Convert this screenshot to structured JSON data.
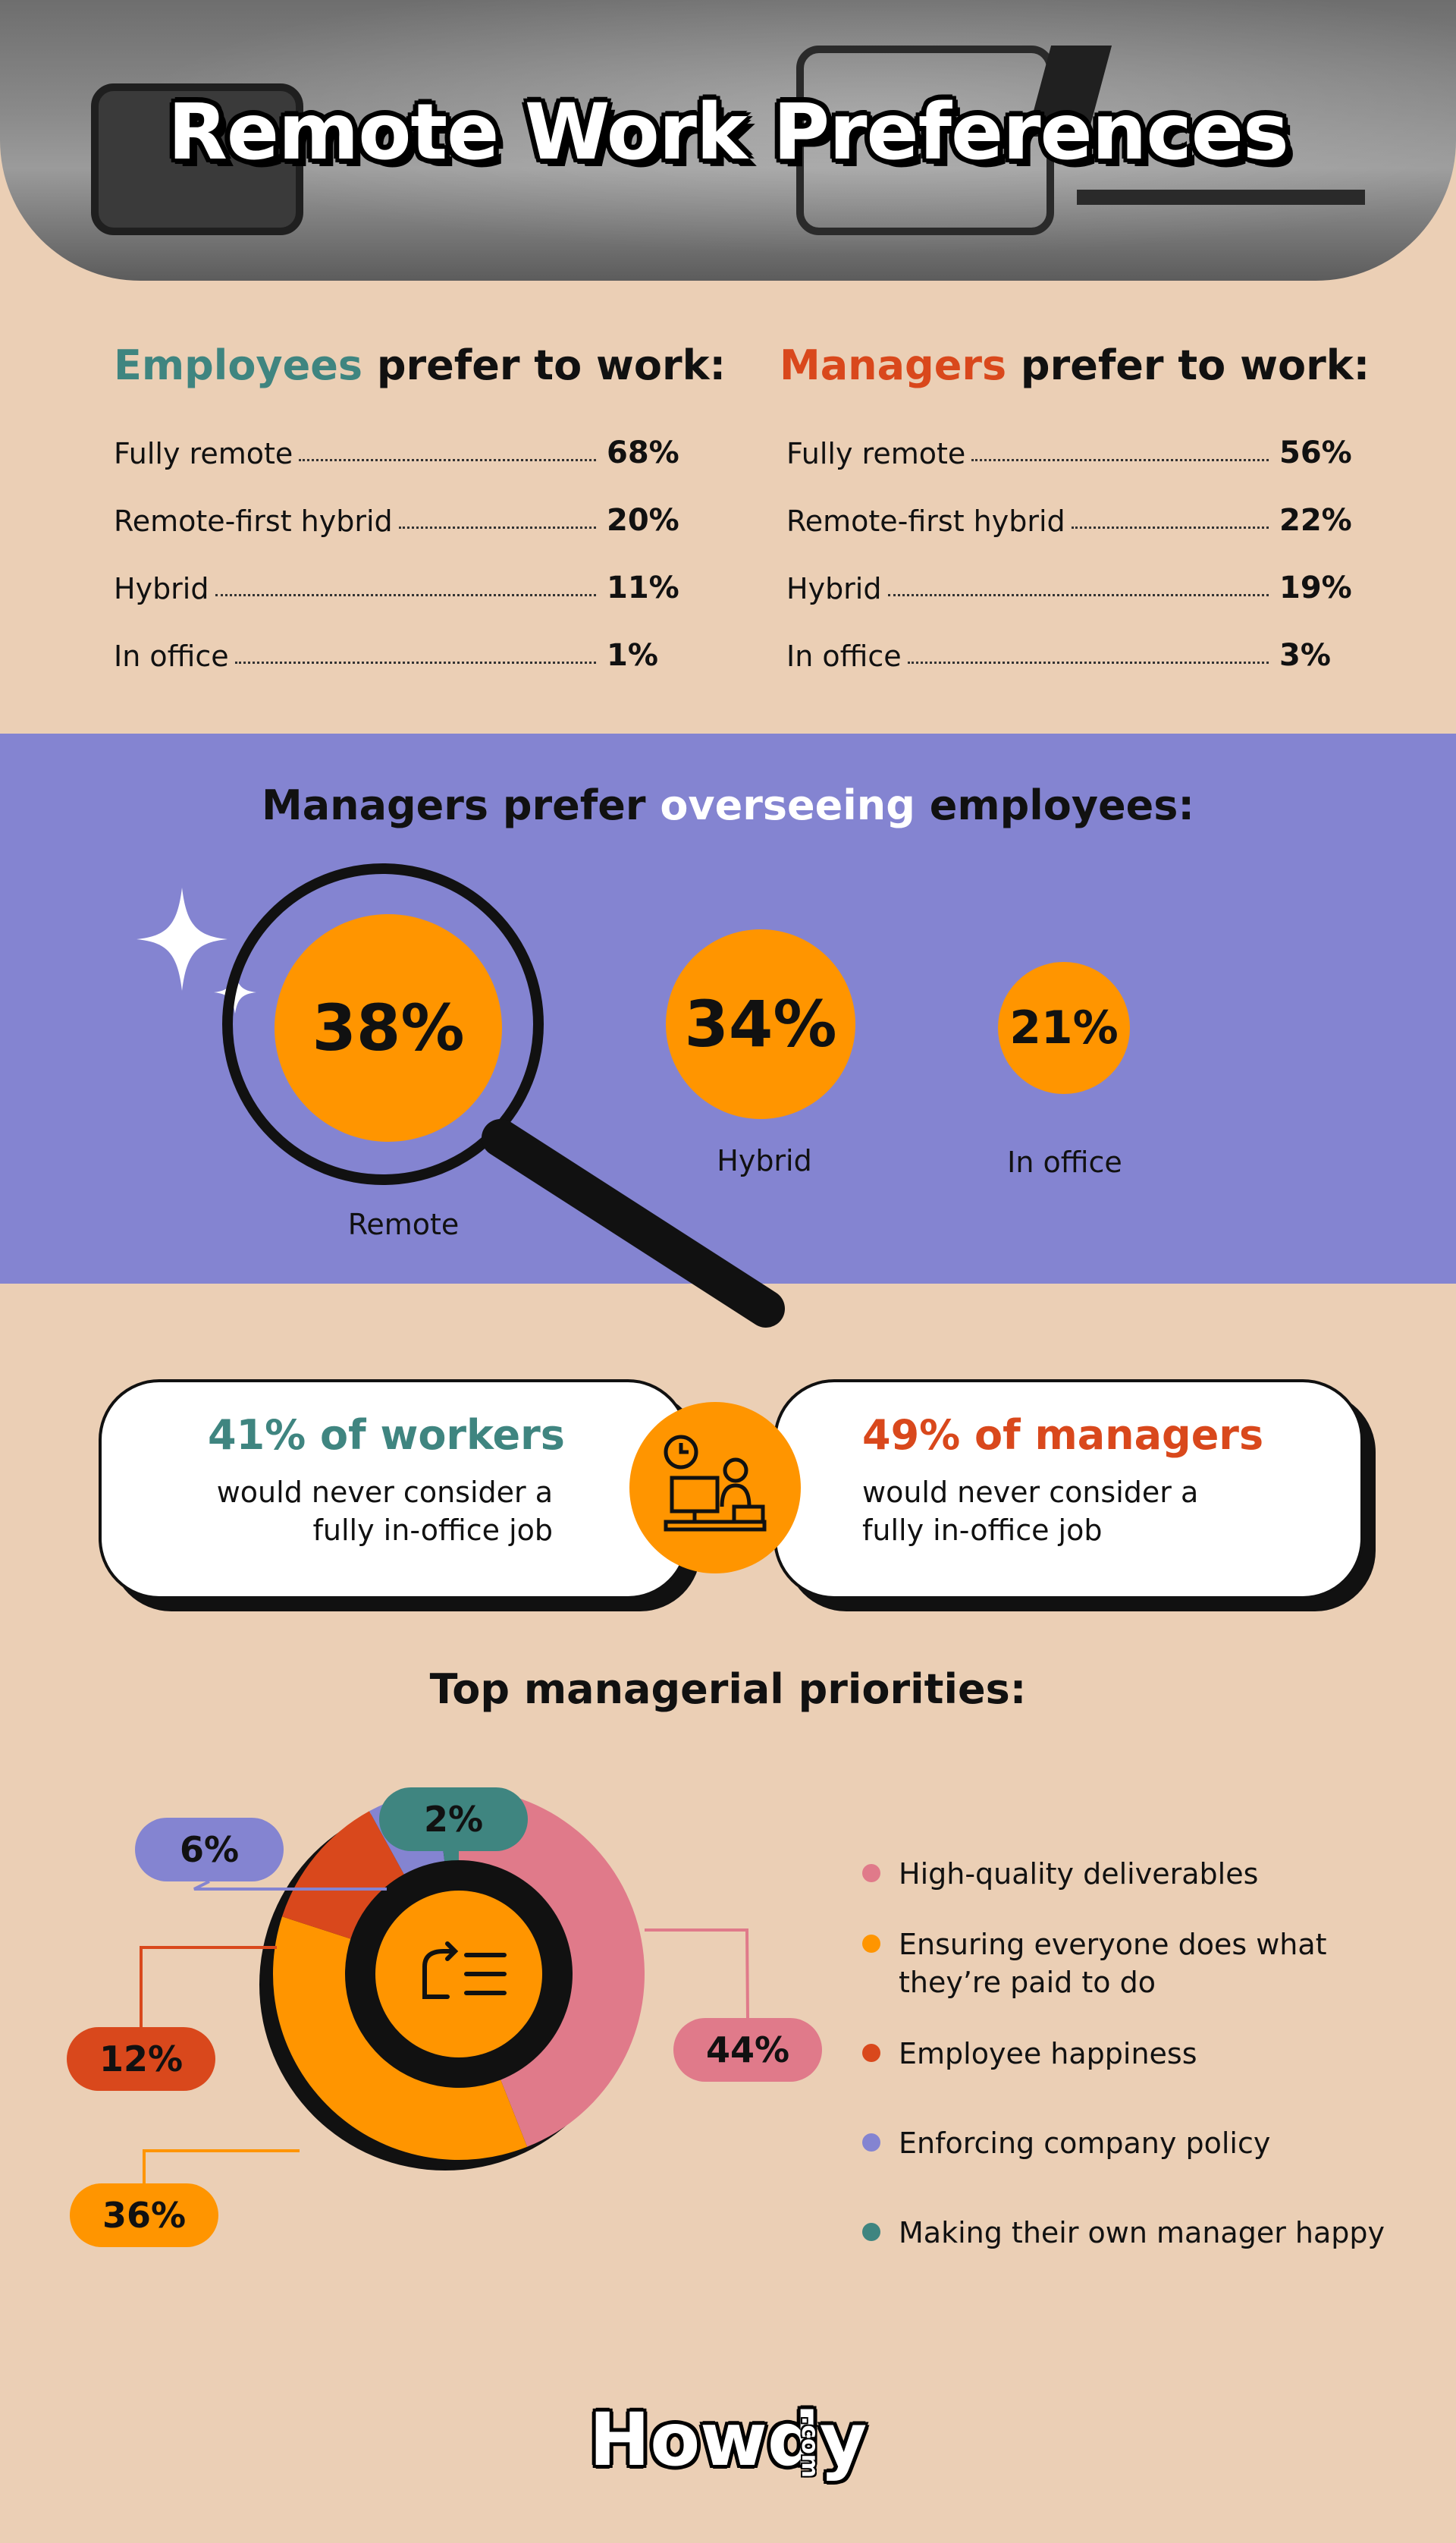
{
  "header": {
    "title": "Remote Work Preferences"
  },
  "preferences": {
    "employees": {
      "heading_highlight": "Employees",
      "heading_rest": " prefer to work:",
      "color": "#3F8580",
      "rows": [
        {
          "label": "Fully remote",
          "value": "68%"
        },
        {
          "label": "Remote-first hybrid",
          "value": "20%"
        },
        {
          "label": "Hybrid",
          "value": "11%"
        },
        {
          "label": "In office",
          "value": "1%"
        }
      ]
    },
    "managers": {
      "heading_highlight": "Managers",
      "heading_rest": " prefer to work:",
      "color": "#D9481C",
      "rows": [
        {
          "label": "Fully remote",
          "value": "56%"
        },
        {
          "label": "Remote-first hybrid",
          "value": "22%"
        },
        {
          "label": "Hybrid",
          "value": "19%"
        },
        {
          "label": "In office",
          "value": "3%"
        }
      ]
    }
  },
  "overseeing": {
    "title_start": "Managers prefer ",
    "title_highlight": "overseeing",
    "title_end": " employees:",
    "items": [
      {
        "label": "Remote",
        "value": "38%"
      },
      {
        "label": "Hybrid",
        "value": "34%"
      },
      {
        "label": "In office",
        "value": "21%"
      }
    ]
  },
  "never_office": {
    "workers": {
      "headline": "41% of workers",
      "line1": "would never consider a",
      "line2": "fully in-office job",
      "color": "#3F8580"
    },
    "managers": {
      "headline": "49% of managers",
      "line1": "would never consider a",
      "line2": "fully in-office job",
      "color": "#D9481C"
    }
  },
  "priorities": {
    "title": "Top managerial priorities:",
    "legend": [
      {
        "line1": "High-quality deliverables",
        "line2": "",
        "color": "#E07A8A"
      },
      {
        "line1": "Ensuring everyone does what",
        "line2": "they’re paid to do",
        "color": "#FF9500"
      },
      {
        "line1": "Employee happiness",
        "line2": "",
        "color": "#D9481C"
      },
      {
        "line1": "Enforcing company policy",
        "line2": "",
        "color": "#8484D1"
      },
      {
        "line1": "Making their own manager happy",
        "line2": "",
        "color": "#3F8580"
      }
    ],
    "labels": [
      "44%",
      "36%",
      "12%",
      "6%",
      "2%"
    ]
  },
  "chart_data": [
    {
      "type": "table",
      "series": [
        {
          "name": "Employees",
          "categories": [
            "Fully remote",
            "Remote-first hybrid",
            "Hybrid",
            "In office"
          ],
          "values": [
            68,
            20,
            11,
            1
          ]
        },
        {
          "name": "Managers",
          "categories": [
            "Fully remote",
            "Remote-first hybrid",
            "Hybrid",
            "In office"
          ],
          "values": [
            56,
            22,
            19,
            3
          ]
        }
      ]
    },
    {
      "type": "bar",
      "categories": [
        "Remote",
        "Hybrid",
        "In office"
      ],
      "values": [
        38,
        34,
        21
      ]
    },
    {
      "type": "pie",
      "categories": [
        "High-quality deliverables",
        "Ensuring everyone does what they’re paid to do",
        "Employee happiness",
        "Enforcing company policy",
        "Making their own manager happy"
      ],
      "values": [
        44,
        36,
        12,
        6,
        2
      ],
      "colors": [
        "#E07A8A",
        "#FF9500",
        "#D9481C",
        "#8484D1",
        "#3F8580"
      ]
    }
  ],
  "footer": {
    "logo": "Howdy",
    "logo_suffix": ".com"
  }
}
